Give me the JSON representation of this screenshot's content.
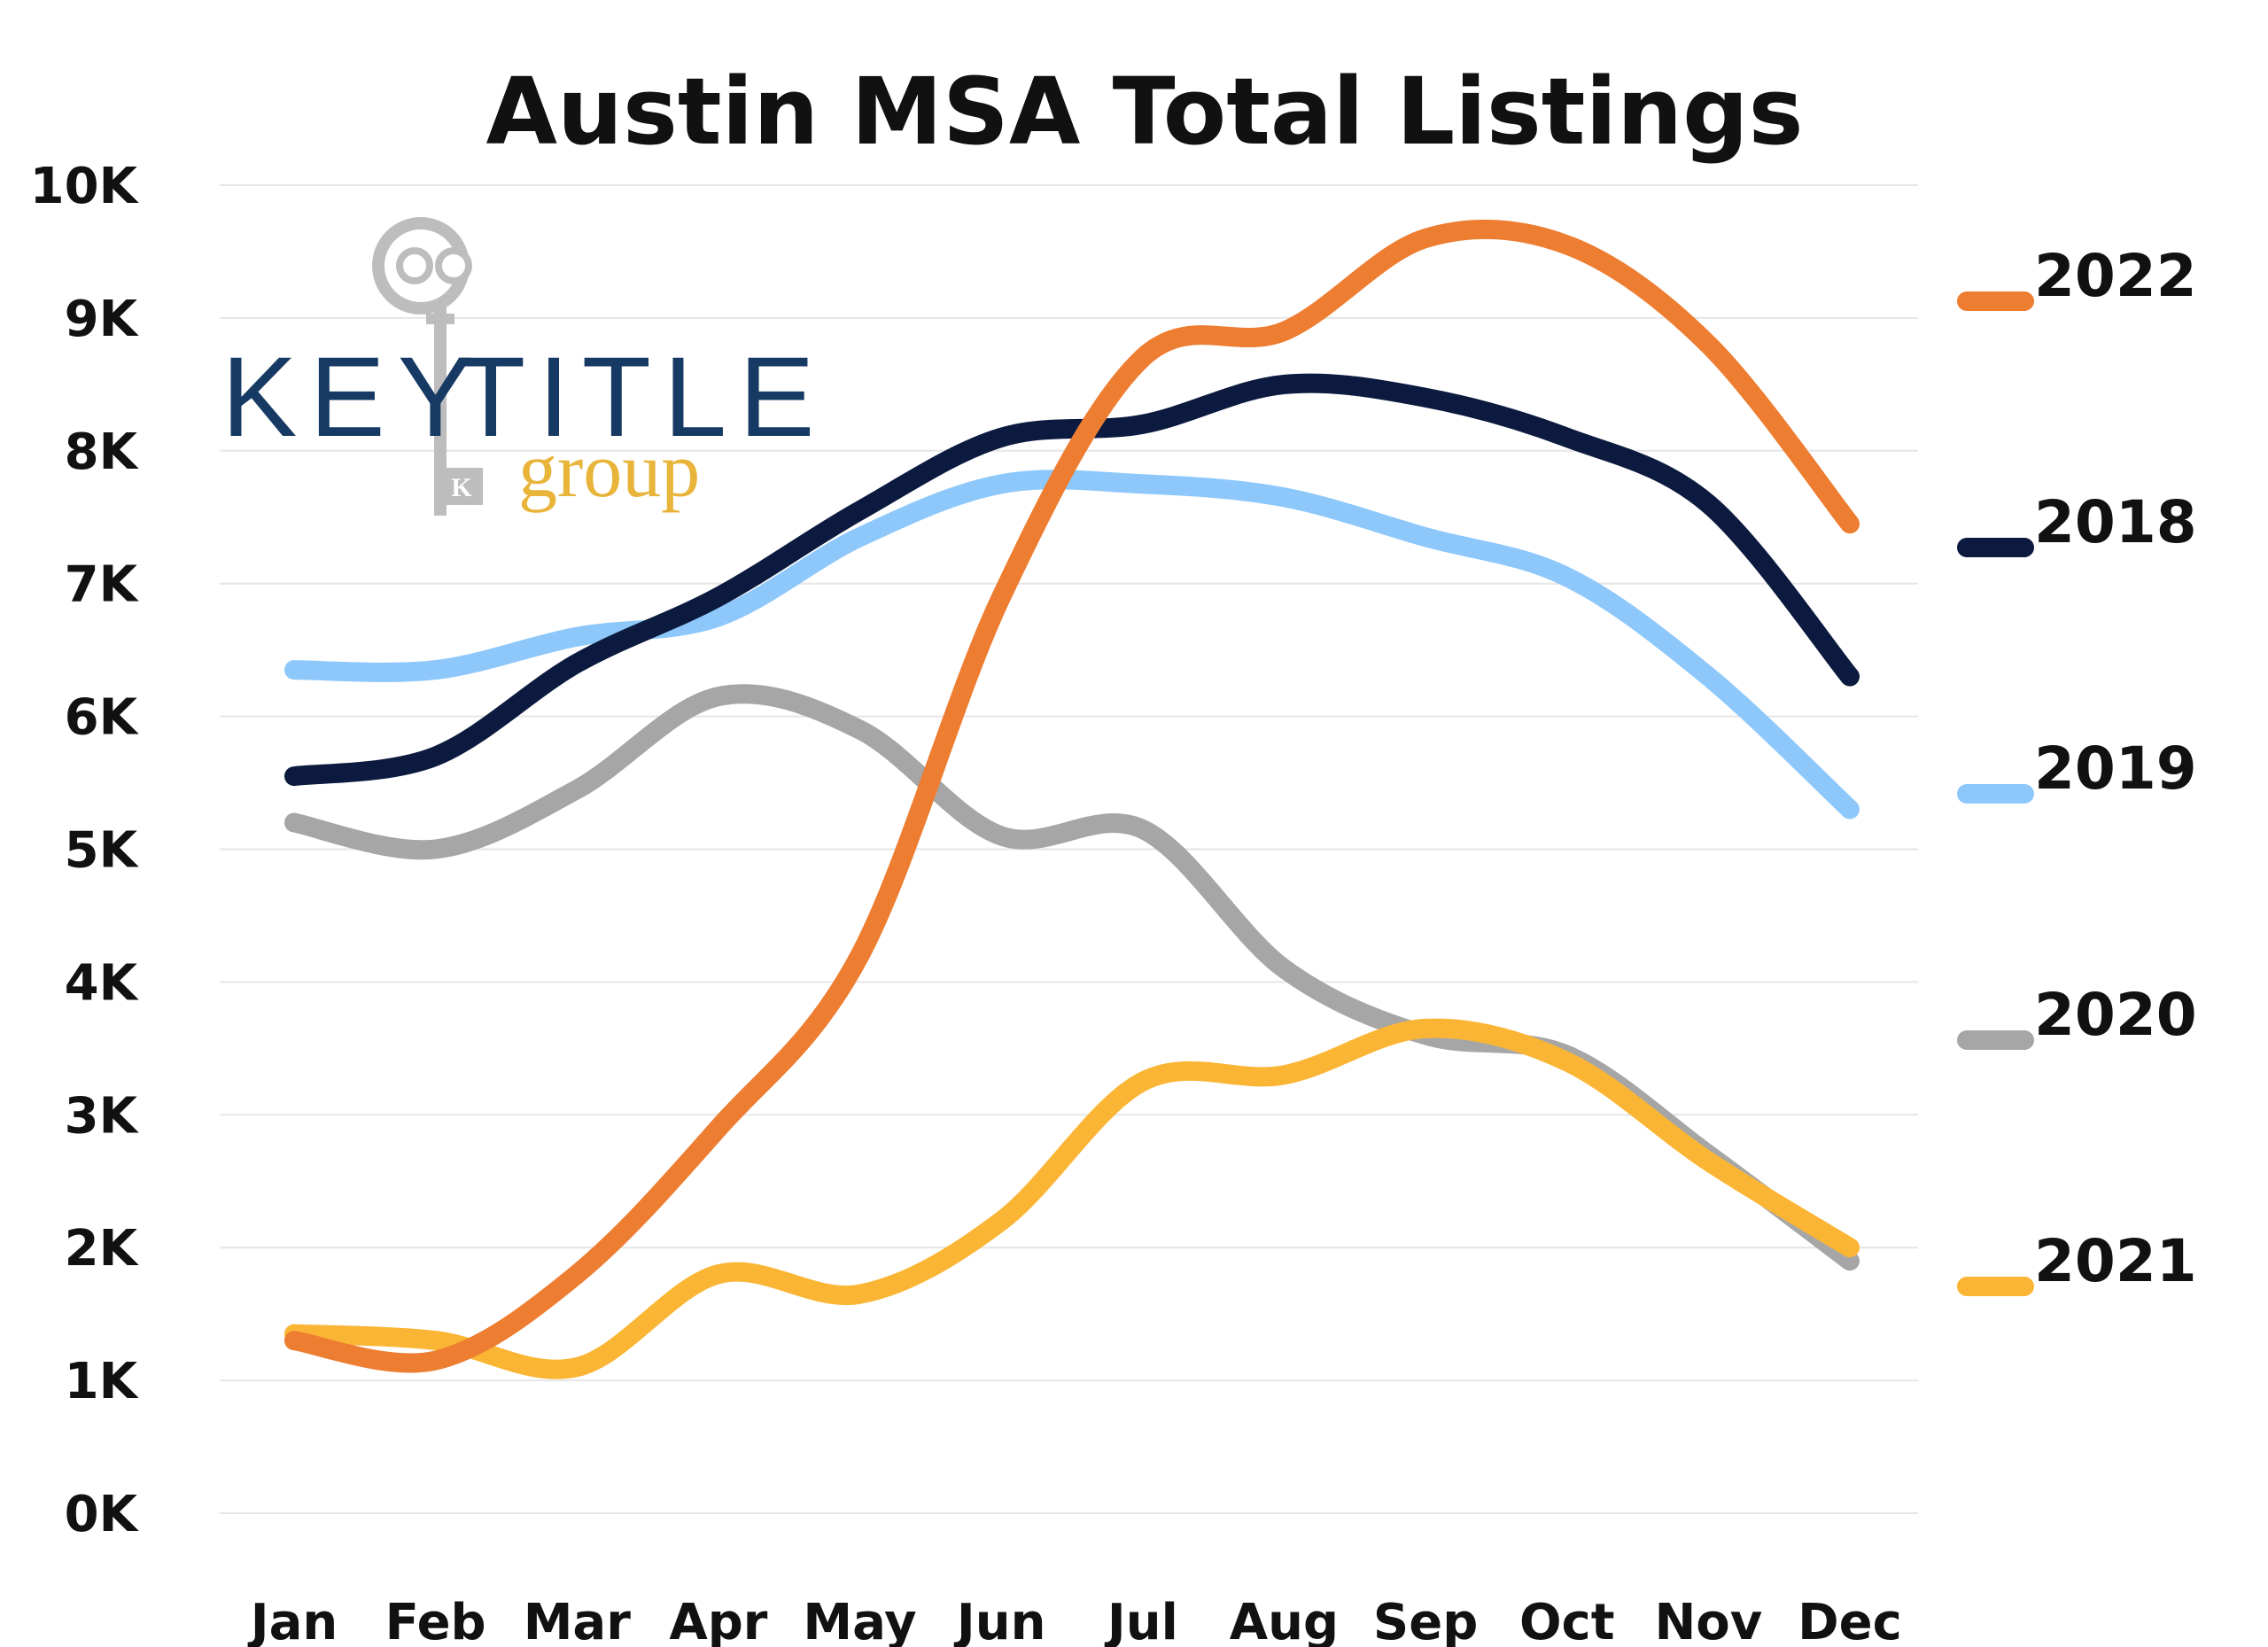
{
  "chart_data": {
    "type": "line",
    "title": "Austin MSA Total Listings",
    "xlabel": "",
    "ylabel": "",
    "ylim": [
      0,
      10000
    ],
    "yticks": [
      {
        "value": 0,
        "label": "0K"
      },
      {
        "value": 1000,
        "label": "1K"
      },
      {
        "value": 2000,
        "label": "2K"
      },
      {
        "value": 3000,
        "label": "3K"
      },
      {
        "value": 4000,
        "label": "4K"
      },
      {
        "value": 5000,
        "label": "5K"
      },
      {
        "value": 6000,
        "label": "6K"
      },
      {
        "value": 7000,
        "label": "7K"
      },
      {
        "value": 8000,
        "label": "8K"
      },
      {
        "value": 9000,
        "label": "9K"
      },
      {
        "value": 10000,
        "label": "10K"
      }
    ],
    "grid": true,
    "legend_position": "right",
    "categories": [
      "Jan",
      "Feb",
      "Mar",
      "Apr",
      "May",
      "Jun",
      "Jul",
      "Aug",
      "Sep",
      "Oct",
      "Nov",
      "Dec"
    ],
    "series": [
      {
        "name": "2022",
        "color": "#ed7d31",
        "values": [
          1300,
          1150,
          1800,
          2900,
          4200,
          6900,
          8700,
          8900,
          9600,
          9550,
          8800,
          7450
        ]
      },
      {
        "name": "2018",
        "color": "#0b1a3e",
        "values": [
          5550,
          5700,
          6400,
          6900,
          7550,
          8100,
          8200,
          8500,
          8400,
          8100,
          7600,
          6300
        ]
      },
      {
        "name": "2019",
        "color": "#8ec8fb",
        "values": [
          6350,
          6350,
          6600,
          6750,
          7350,
          7750,
          7750,
          7650,
          7350,
          7050,
          6300,
          5300
        ]
      },
      {
        "name": "2020",
        "color": "#a6a6a6",
        "values": [
          5200,
          5000,
          5450,
          6150,
          5900,
          5100,
          5150,
          4100,
          3600,
          3450,
          2700,
          1900
        ]
      },
      {
        "name": "2021",
        "color": "#fbb535",
        "values": [
          1350,
          1300,
          1100,
          1800,
          1650,
          2200,
          3250,
          3300,
          3650,
          3400,
          2650,
          2000
        ]
      }
    ]
  },
  "logo": {
    "word_left": "KEY",
    "word_right": "TITLE",
    "subtitle": "group",
    "key_badge": "K",
    "colors": {
      "navy": "#163a63",
      "gold": "#e8b43a",
      "grey": "#bdbdbd"
    }
  }
}
